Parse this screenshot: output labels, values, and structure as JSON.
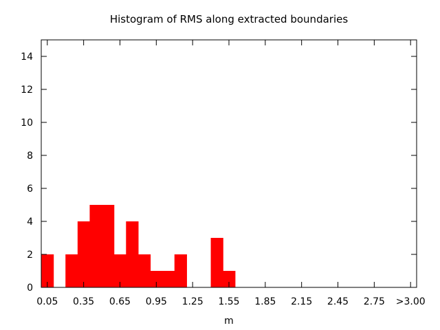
{
  "chart_data": {
    "type": "bar",
    "title": "Histogram of RMS along extracted boundaries",
    "xlabel": "m",
    "ylabel": "",
    "bin_width": 0.1,
    "x": [
      0.05,
      0.15,
      0.25,
      0.35,
      0.45,
      0.55,
      0.65,
      0.75,
      0.85,
      0.95,
      1.05,
      1.15,
      1.25,
      1.35,
      1.45,
      1.55,
      1.65,
      1.75,
      1.85,
      1.95,
      2.05,
      2.15,
      2.25,
      2.35,
      2.45,
      2.55,
      2.65,
      2.75,
      2.85,
      2.95,
      3.05
    ],
    "values": [
      2,
      0,
      2,
      4,
      5,
      5,
      2,
      4,
      2,
      1,
      1,
      2,
      0,
      0,
      3,
      1,
      0,
      0,
      0,
      0,
      0,
      0,
      0,
      0,
      0,
      0,
      0,
      0,
      0,
      0,
      0
    ],
    "xlim": [
      0.0,
      3.1
    ],
    "ylim": [
      0,
      15
    ],
    "x_ticks": [
      0.05,
      0.35,
      0.65,
      0.95,
      1.25,
      1.55,
      1.85,
      2.15,
      2.45,
      2.75,
      3.05
    ],
    "x_tick_labels": [
      "0.05",
      "0.35",
      "0.65",
      "0.95",
      "1.25",
      "1.55",
      "1.85",
      "2.15",
      "2.45",
      "2.75",
      ">3.00"
    ],
    "y_ticks": [
      0,
      2,
      4,
      6,
      8,
      10,
      12,
      14
    ],
    "y_tick_labels": [
      "0",
      "2",
      "4",
      "6",
      "8",
      "10",
      "12",
      "14"
    ],
    "bar_color": "#ff0000",
    "grid": false,
    "legend": false
  }
}
